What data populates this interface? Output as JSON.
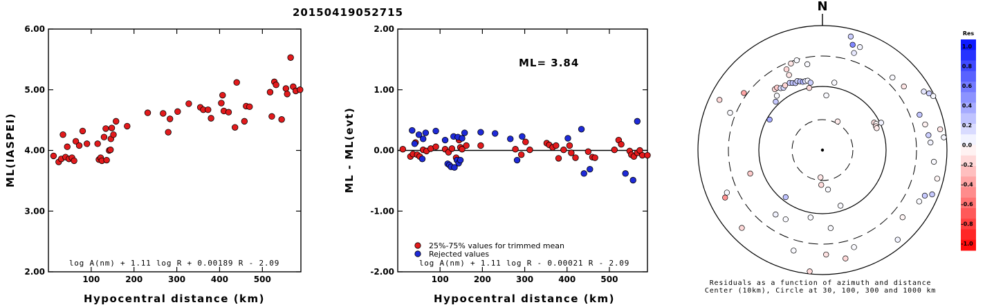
{
  "title": "20150419052715",
  "chart_data": [
    {
      "type": "scatter",
      "xlabel": "Hypocentral distance (km)",
      "ylabel": "ML(IASPEI)",
      "xlim": [
        0,
        590
      ],
      "ylim": [
        2,
        6
      ],
      "xticks": [
        "100",
        "200",
        "300",
        "400",
        "500"
      ],
      "yticks": [
        "2.00",
        "3.00",
        "4.00",
        "5.00",
        "6.00"
      ],
      "formula": "log A(nm) + 1.11 log R + 0.00189 R - 2.09",
      "marker_color": "#e31a1c",
      "points": [
        [
          12,
          3.91
        ],
        [
          24,
          3.81
        ],
        [
          30,
          3.86
        ],
        [
          34,
          4.26
        ],
        [
          40,
          3.89
        ],
        [
          44,
          4.06
        ],
        [
          48,
          3.86
        ],
        [
          55,
          3.88
        ],
        [
          60,
          3.83
        ],
        [
          64,
          4.15
        ],
        [
          72,
          4.08
        ],
        [
          80,
          4.32
        ],
        [
          90,
          4.11
        ],
        [
          115,
          4.11
        ],
        [
          118,
          3.85
        ],
        [
          122,
          3.88
        ],
        [
          125,
          3.83
        ],
        [
          130,
          4.22
        ],
        [
          134,
          4.36
        ],
        [
          136,
          3.84
        ],
        [
          142,
          4.0
        ],
        [
          145,
          4.01
        ],
        [
          146,
          4.19
        ],
        [
          148,
          4.37
        ],
        [
          152,
          4.26
        ],
        [
          158,
          4.48
        ],
        [
          184,
          4.4
        ],
        [
          232,
          4.62
        ],
        [
          268,
          4.61
        ],
        [
          280,
          4.3
        ],
        [
          284,
          4.52
        ],
        [
          302,
          4.64
        ],
        [
          328,
          4.77
        ],
        [
          355,
          4.71
        ],
        [
          362,
          4.67
        ],
        [
          373,
          4.67
        ],
        [
          380,
          4.53
        ],
        [
          404,
          4.78
        ],
        [
          407,
          4.91
        ],
        [
          410,
          4.65
        ],
        [
          421,
          4.63
        ],
        [
          436,
          4.38
        ],
        [
          440,
          5.12
        ],
        [
          458,
          4.48
        ],
        [
          462,
          4.73
        ],
        [
          470,
          4.72
        ],
        [
          518,
          4.96
        ],
        [
          522,
          4.56
        ],
        [
          528,
          5.13
        ],
        [
          532,
          5.08
        ],
        [
          545,
          4.51
        ],
        [
          555,
          5.02
        ],
        [
          558,
          4.93
        ],
        [
          566,
          5.53
        ],
        [
          572,
          5.05
        ],
        [
          578,
          4.98
        ],
        [
          588,
          5.0
        ]
      ]
    },
    {
      "type": "scatter",
      "xlabel": "Hypocentral distance (km)",
      "ylabel": "ML - ML(evt)",
      "xlim": [
        0,
        590
      ],
      "ylim": [
        -2,
        2
      ],
      "xticks": [
        "100",
        "200",
        "300",
        "400",
        "500"
      ],
      "yticks": [
        "-2.00",
        "-1.00",
        "0.00",
        "1.00",
        "2.00"
      ],
      "ml_label": "ML= 3.84",
      "formula": "log A(nm) + 1.11 log R - 0.00021 R - 2.09",
      "reference_line": 0,
      "legend": [
        {
          "label": "25%-75% values for trimmed mean",
          "color": "#e31a1c"
        },
        {
          "label": "Rejected values",
          "color": "#1e2ad8"
        }
      ],
      "series": [
        {
          "name": "25%-75% values for trimmed mean",
          "color": "#e31a1c",
          "points": [
            [
              12,
              0.02
            ],
            [
              30,
              -0.1
            ],
            [
              36,
              -0.06
            ],
            [
              42,
              0.13
            ],
            [
              46,
              -0.07
            ],
            [
              52,
              -0.1
            ],
            [
              60,
              0.01
            ],
            [
              68,
              -0.01
            ],
            [
              78,
              0.03
            ],
            [
              90,
              0.06
            ],
            [
              112,
              0.02
            ],
            [
              120,
              -0.03
            ],
            [
              128,
              0.03
            ],
            [
              138,
              -0.12
            ],
            [
              145,
              0.17
            ],
            [
              148,
              0.05
            ],
            [
              152,
              0.02
            ],
            [
              162,
              0.08
            ],
            [
              196,
              0.08
            ],
            [
              278,
              0.02
            ],
            [
              292,
              -0.07
            ],
            [
              302,
              0.14
            ],
            [
              312,
              0.01
            ],
            [
              352,
              0.12
            ],
            [
              358,
              0.09
            ],
            [
              366,
              0.05
            ],
            [
              374,
              0.08
            ],
            [
              380,
              -0.13
            ],
            [
              392,
              0.01
            ],
            [
              406,
              0.08
            ],
            [
              410,
              -0.04
            ],
            [
              420,
              -0.12
            ],
            [
              450,
              -0.02
            ],
            [
              460,
              -0.11
            ],
            [
              466,
              -0.12
            ],
            [
              512,
              0.01
            ],
            [
              522,
              0.17
            ],
            [
              528,
              0.1
            ],
            [
              548,
              -0.01
            ],
            [
              552,
              -0.07
            ],
            [
              558,
              -0.1
            ],
            [
              566,
              -0.04
            ],
            [
              572,
              0.0
            ],
            [
              578,
              -0.08
            ],
            [
              590,
              -0.08
            ]
          ]
        },
        {
          "name": "Rejected values",
          "color": "#1e2ad8",
          "points": [
            [
              34,
              0.33
            ],
            [
              40,
              0.11
            ],
            [
              50,
              0.26
            ],
            [
              58,
              -0.14
            ],
            [
              60,
              0.19
            ],
            [
              66,
              0.29
            ],
            [
              90,
              0.32
            ],
            [
              112,
              0.17
            ],
            [
              118,
              -0.22
            ],
            [
              122,
              -0.24
            ],
            [
              126,
              -0.27
            ],
            [
              132,
              0.23
            ],
            [
              134,
              -0.28
            ],
            [
              140,
              -0.16
            ],
            [
              142,
              0.22
            ],
            [
              144,
              -0.21
            ],
            [
              148,
              -0.16
            ],
            [
              152,
              0.2
            ],
            [
              158,
              0.29
            ],
            [
              196,
              0.3
            ],
            [
              230,
              0.28
            ],
            [
              266,
              0.19
            ],
            [
              282,
              -0.16
            ],
            [
              294,
              0.23
            ],
            [
              402,
              0.2
            ],
            [
              434,
              0.35
            ],
            [
              440,
              -0.38
            ],
            [
              454,
              -0.31
            ],
            [
              538,
              -0.38
            ],
            [
              556,
              -0.49
            ],
            [
              566,
              0.48
            ]
          ]
        }
      ]
    },
    {
      "type": "polar-residual",
      "north_label": "N",
      "caption_line1": "Residuals as a function of azimuth and distance",
      "caption_line2": "Center (10km), Circle at 30, 100, 300 and 1000 km",
      "colorbar_title": "Res",
      "colorbar_ticks": [
        "1.0",
        "0.8",
        "0.6",
        "0.4",
        "0.2",
        "0.0",
        "-0.2",
        "-0.4",
        "-0.6",
        "-0.8",
        "-1.0"
      ],
      "colorbar_range": [
        -1.0,
        1.0
      ],
      "stations": [
        [
          10,
          0.55,
          0.02
        ],
        [
          14,
          0.94,
          0.2
        ],
        [
          16,
          0.88,
          0.5
        ],
        [
          18,
          0.82,
          0.09
        ],
        [
          20,
          0.88,
          0.05
        ],
        [
          28,
          0.26,
          -0.08
        ],
        [
          62,
          0.97,
          0.2
        ],
        [
          4,
          0.44,
          0.02
        ],
        [
          44,
          0.81,
          0.02
        ],
        [
          52,
          0.83,
          -0.1
        ],
        [
          62,
          0.47,
          -0.12
        ],
        [
          64,
          0.48,
          -0.03
        ],
        [
          66,
          0.47,
          -0.1
        ],
        [
          68,
          0.47,
          -0.08
        ],
        [
          65,
          0.52,
          0.05
        ],
        [
          60,
          0.94,
          0.1
        ],
        [
          64,
          0.99,
          0.03
        ],
        [
          70,
          0.83,
          0.24
        ],
        [
          76,
          0.85,
          -0.05
        ],
        [
          80,
          0.96,
          -0.1
        ],
        [
          82,
          0.86,
          0.2
        ],
        [
          86,
          0.87,
          0.05
        ],
        [
          84,
          0.98,
          0.03
        ],
        [
          96,
          0.9,
          0.02
        ],
        [
          104,
          0.95,
          -0.04
        ],
        [
          112,
          0.95,
          0.22
        ],
        [
          114,
          0.9,
          0.22
        ],
        [
          118,
          0.88,
          0.02
        ],
        [
          130,
          0.84,
          -0.04
        ],
        [
          140,
          0.94,
          0.05
        ],
        [
          162,
          0.82,
          0.02
        ],
        [
          162,
          0.47,
          0.02
        ],
        [
          168,
          0.89,
          -0.15
        ],
        [
          174,
          0.63,
          0.02
        ],
        [
          178,
          0.84,
          -0.11
        ],
        [
          186,
          0.98,
          -0.15
        ],
        [
          190,
          0.55,
          0.02
        ],
        [
          196,
          0.84,
          0.02
        ],
        [
          182,
          0.28,
          -0.14
        ],
        [
          184,
          0.22,
          -0.1
        ],
        [
          172,
          0.32,
          0.02
        ],
        [
          208,
          0.63,
          0.02
        ],
        [
          216,
          0.64,
          0.05
        ],
        [
          218,
          0.48,
          0.25
        ],
        [
          226,
          0.9,
          -0.15
        ],
        [
          244,
          0.87,
          -0.42
        ],
        [
          246,
          0.84,
          0.03
        ],
        [
          252,
          0.61,
          -0.2
        ],
        [
          292,
          0.8,
          0.02
        ],
        [
          296,
          0.92,
          -0.15
        ],
        [
          300,
          0.49,
          0.35
        ],
        [
          320,
          0.57,
          0.02
        ],
        [
          322,
          0.62,
          -0.15
        ],
        [
          324,
          0.62,
          -0.2
        ],
        [
          326,
          0.6,
          0.12
        ],
        [
          328,
          0.59,
          0.15
        ],
        [
          330,
          0.6,
          -0.16
        ],
        [
          334,
          0.6,
          0.2
        ],
        [
          336,
          0.59,
          0.25
        ],
        [
          338,
          0.58,
          0.25
        ],
        [
          340,
          0.59,
          0.18
        ],
        [
          342,
          0.58,
          0.25
        ],
        [
          344,
          0.57,
          0.32
        ],
        [
          346,
          0.57,
          0.12
        ],
        [
          348,
          0.57,
          0.05
        ],
        [
          350,
          0.55,
          0.2
        ],
        [
          336,
          0.71,
          -0.15
        ],
        [
          340,
          0.74,
          -0.1
        ],
        [
          344,
          0.75,
          0.02
        ],
        [
          350,
          0.7,
          0.02
        ],
        [
          348,
          0.51,
          -0.14
        ],
        [
          336,
          0.66,
          -0.1
        ],
        [
          316,
          0.54,
          0.22
        ],
        [
          306,
          0.78,
          -0.35
        ]
      ]
    }
  ]
}
